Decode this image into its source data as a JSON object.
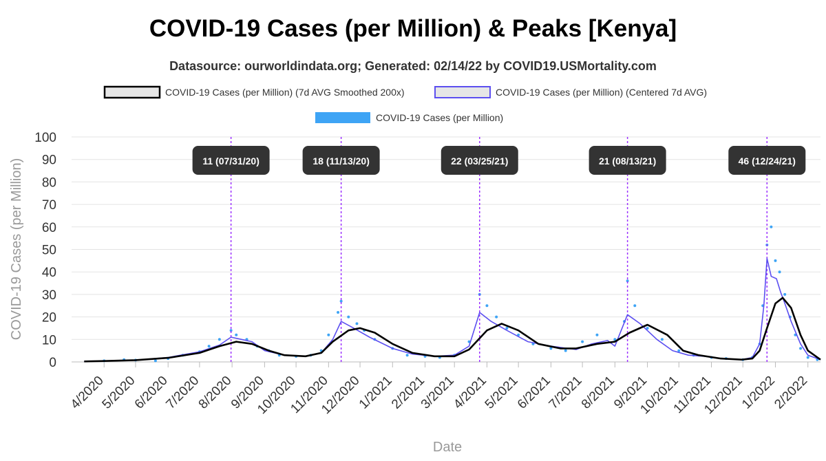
{
  "chart_data": {
    "type": "line",
    "title": "COVID-19 Cases (per Million) & Peaks [Kenya]",
    "subtitle": "Datasource: ourworldindata.org; Generated: 02/14/22 by COVID19.USMortality.com",
    "xlabel": "Date",
    "ylabel": "COVID-19 Cases (per Million)",
    "ylim": [
      0,
      100
    ],
    "yticks": [
      0,
      10,
      20,
      30,
      40,
      50,
      60,
      70,
      80,
      90,
      100
    ],
    "xlim": [
      "2020-03-01",
      "2022-02-13"
    ],
    "xtick_dates": [
      "2020-04-01",
      "2020-05-01",
      "2020-06-01",
      "2020-07-01",
      "2020-08-01",
      "2020-09-01",
      "2020-10-01",
      "2020-11-01",
      "2020-12-01",
      "2021-01-01",
      "2021-02-01",
      "2021-03-01",
      "2021-04-01",
      "2021-05-01",
      "2021-06-01",
      "2021-07-01",
      "2021-08-01",
      "2021-09-01",
      "2021-10-01",
      "2021-11-01",
      "2021-12-01",
      "2022-01-01",
      "2022-02-01"
    ],
    "xtick_labels": [
      "4/2020",
      "5/2020",
      "6/2020",
      "7/2020",
      "8/2020",
      "9/2020",
      "10/2020",
      "11/2020",
      "12/2020",
      "1/2021",
      "2/2021",
      "3/2021",
      "4/2021",
      "5/2021",
      "6/2021",
      "7/2021",
      "8/2021",
      "9/2021",
      "10/2021",
      "11/2021",
      "12/2021",
      "1/2022",
      "2/2022"
    ],
    "grid": true,
    "legend_placement": "top",
    "colors": {
      "smoothed": "#000000",
      "centered": "#5b4ef0",
      "daily": "#3ea4f5",
      "peak_line": "#9b30ff",
      "peak_label_bg": "#333333"
    },
    "series": [
      {
        "name": "COVID-19 Cases (per Million) (7d AVG Smoothed 200x)",
        "style": "line",
        "x": [
          "2020-03-13",
          "2020-04-01",
          "2020-05-01",
          "2020-06-01",
          "2020-07-01",
          "2020-07-20",
          "2020-08-05",
          "2020-08-20",
          "2020-09-05",
          "2020-09-20",
          "2020-10-10",
          "2020-10-25",
          "2020-11-05",
          "2020-11-20",
          "2020-12-01",
          "2020-12-15",
          "2021-01-01",
          "2021-01-20",
          "2021-02-10",
          "2021-03-01",
          "2021-03-15",
          "2021-04-01",
          "2021-04-15",
          "2021-05-01",
          "2021-05-20",
          "2021-06-10",
          "2021-06-25",
          "2021-07-15",
          "2021-08-01",
          "2021-08-15",
          "2021-09-01",
          "2021-09-20",
          "2021-10-05",
          "2021-10-20",
          "2021-11-10",
          "2021-11-30",
          "2021-12-10",
          "2021-12-17",
          "2021-12-24",
          "2022-01-01",
          "2022-01-08",
          "2022-01-16",
          "2022-01-25",
          "2022-02-01",
          "2022-02-13"
        ],
        "y": [
          0.2,
          0.4,
          0.8,
          1.8,
          4,
          7,
          9,
          8,
          5,
          3,
          2.5,
          4,
          9,
          14,
          15,
          13,
          8,
          4,
          2.5,
          2.5,
          5.5,
          14,
          17,
          14,
          8,
          6,
          6,
          8,
          9,
          13,
          16.5,
          12,
          5,
          3,
          1.5,
          1,
          1.5,
          5,
          15,
          26,
          28.5,
          24,
          12,
          5,
          1
        ]
      },
      {
        "name": "COVID-19 Cases (per Million) (Centered 7d AVG)",
        "style": "line",
        "x": [
          "2020-03-13",
          "2020-05-01",
          "2020-06-01",
          "2020-07-01",
          "2020-07-20",
          "2020-07-31",
          "2020-08-10",
          "2020-08-20",
          "2020-09-01",
          "2020-09-20",
          "2020-10-10",
          "2020-10-25",
          "2020-11-05",
          "2020-11-13",
          "2020-11-25",
          "2020-12-10",
          "2021-01-01",
          "2021-01-20",
          "2021-02-10",
          "2021-03-01",
          "2021-03-15",
          "2021-03-25",
          "2021-04-05",
          "2021-04-20",
          "2021-05-10",
          "2021-06-01",
          "2021-06-25",
          "2021-07-10",
          "2021-07-25",
          "2021-08-01",
          "2021-08-13",
          "2021-08-25",
          "2021-09-10",
          "2021-09-25",
          "2021-10-10",
          "2021-10-25",
          "2021-11-10",
          "2021-11-30",
          "2021-12-10",
          "2021-12-17",
          "2021-12-21",
          "2021-12-24",
          "2021-12-28",
          "2022-01-02",
          "2022-01-06",
          "2022-01-10",
          "2022-01-16",
          "2022-01-25",
          "2022-02-01",
          "2022-02-13"
        ],
        "y": [
          0.2,
          0.8,
          2,
          4.5,
          7.5,
          11,
          10,
          9,
          5,
          3,
          2.5,
          4,
          10,
          18,
          15,
          11,
          6,
          3.5,
          2.5,
          3,
          7,
          22,
          18,
          14,
          9,
          7,
          5.5,
          8,
          9.5,
          7,
          21,
          17,
          10,
          5,
          3,
          2.5,
          1.5,
          1,
          2,
          8,
          25,
          46,
          38,
          37,
          31,
          26,
          18,
          8,
          3,
          1
        ]
      },
      {
        "name": "COVID-19 Cases (per Million)",
        "style": "scatter",
        "x": [
          "2020-04-01",
          "2020-04-20",
          "2020-05-01",
          "2020-05-20",
          "2020-06-01",
          "2020-06-15",
          "2020-07-01",
          "2020-07-10",
          "2020-07-20",
          "2020-07-31",
          "2020-08-05",
          "2020-08-15",
          "2020-08-25",
          "2020-09-05",
          "2020-09-15",
          "2020-10-01",
          "2020-10-15",
          "2020-10-25",
          "2020-11-01",
          "2020-11-10",
          "2020-11-13",
          "2020-11-20",
          "2020-11-28",
          "2020-12-05",
          "2020-12-15",
          "2021-01-01",
          "2021-01-15",
          "2021-02-01",
          "2021-02-15",
          "2021-03-01",
          "2021-03-15",
          "2021-03-25",
          "2021-04-01",
          "2021-04-10",
          "2021-04-20",
          "2021-05-01",
          "2021-05-15",
          "2021-06-01",
          "2021-06-15",
          "2021-07-01",
          "2021-07-15",
          "2021-08-01",
          "2021-08-10",
          "2021-08-13",
          "2021-08-20",
          "2021-09-01",
          "2021-09-15",
          "2021-10-01",
          "2021-10-15",
          "2021-11-01",
          "2021-11-15",
          "2021-12-01",
          "2021-12-10",
          "2021-12-17",
          "2021-12-20",
          "2021-12-24",
          "2021-12-28",
          "2022-01-01",
          "2022-01-05",
          "2022-01-10",
          "2022-01-15",
          "2022-01-20",
          "2022-01-25",
          "2022-02-01",
          "2022-02-10"
        ],
        "y": [
          0.5,
          1,
          0.8,
          0.5,
          1.5,
          3,
          4.5,
          7,
          10,
          14,
          12,
          10,
          7,
          5,
          3,
          2.5,
          3,
          5,
          12,
          22,
          27,
          20,
          17,
          14,
          10,
          6,
          3,
          2.5,
          2,
          3,
          9,
          30,
          25,
          20,
          15,
          12,
          8,
          6,
          5,
          9,
          12,
          10,
          18,
          36,
          25,
          15,
          10,
          5,
          3,
          2,
          1.5,
          1,
          2,
          8,
          25,
          52,
          60,
          45,
          40,
          30,
          20,
          12,
          6,
          2,
          1
        ]
      }
    ],
    "peaks": [
      {
        "date": "2020-07-31",
        "label": "11 (07/31/20)"
      },
      {
        "date": "2020-11-13",
        "label": "18 (11/13/20)"
      },
      {
        "date": "2021-03-25",
        "label": "22 (03/25/21)"
      },
      {
        "date": "2021-08-13",
        "label": "21 (08/13/21)"
      },
      {
        "date": "2021-12-24",
        "label": "46 (12/24/21)"
      }
    ]
  }
}
